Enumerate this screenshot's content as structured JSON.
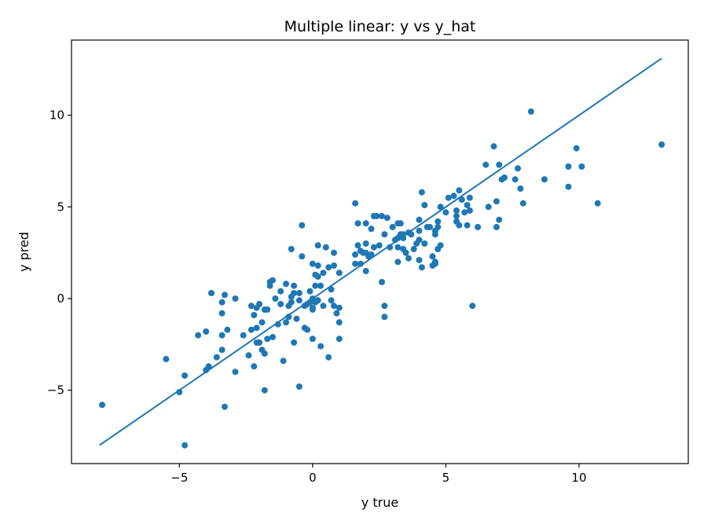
{
  "chart_data": {
    "type": "scatter",
    "title": "Multiple linear: y vs y_hat",
    "xlabel": "y true",
    "ylabel": "y pred",
    "xlim": [
      -9.05,
      14.1
    ],
    "ylim": [
      -9.0,
      14.1
    ],
    "xticks": [
      -5,
      0,
      5,
      10
    ],
    "yticks": [
      -5,
      0,
      5,
      10
    ],
    "xtick_labels": [
      "−5",
      "0",
      "5",
      "10"
    ],
    "ytick_labels": [
      "−5",
      "0",
      "5",
      "10"
    ],
    "grid": false,
    "legend": "none",
    "point_color": "#1f77b4",
    "line_color": "#1f77b4",
    "reference_line": {
      "x": [
        -8.0,
        13.1
      ],
      "y": [
        -8.0,
        13.1
      ]
    },
    "points": [
      [
        -7.9,
        -5.8
      ],
      [
        -5.5,
        -3.3
      ],
      [
        -5.0,
        -5.1
      ],
      [
        -4.8,
        -4.2
      ],
      [
        -4.8,
        -8.0
      ],
      [
        -4.3,
        -2.0
      ],
      [
        -4.0,
        -1.8
      ],
      [
        -4.0,
        -3.9
      ],
      [
        -3.9,
        -3.7
      ],
      [
        -3.8,
        0.3
      ],
      [
        -3.6,
        -3.2
      ],
      [
        -3.4,
        -2.8
      ],
      [
        -3.4,
        -0.2
      ],
      [
        -3.4,
        -0.8
      ],
      [
        -3.4,
        -2.0
      ],
      [
        -3.3,
        0.2
      ],
      [
        -3.3,
        -5.9
      ],
      [
        -3.2,
        -1.7
      ],
      [
        -2.9,
        0.0
      ],
      [
        -2.9,
        -4.0
      ],
      [
        -2.6,
        -2.0
      ],
      [
        -2.4,
        -3.1
      ],
      [
        -2.3,
        -0.4
      ],
      [
        -2.3,
        -1.7
      ],
      [
        -2.2,
        -3.7
      ],
      [
        -2.2,
        -0.9
      ],
      [
        -2.1,
        -2.4
      ],
      [
        -2.1,
        -0.5
      ],
      [
        -2.1,
        -1.6
      ],
      [
        -2.0,
        -2.4
      ],
      [
        -2.0,
        -0.3
      ],
      [
        -1.9,
        -2.8
      ],
      [
        -1.9,
        -1.3
      ],
      [
        -1.8,
        -0.6
      ],
      [
        -1.8,
        -3.0
      ],
      [
        -1.8,
        -5.0
      ],
      [
        -1.7,
        -0.6
      ],
      [
        -1.7,
        -2.2
      ],
      [
        -1.6,
        0.9
      ],
      [
        -1.6,
        0.7
      ],
      [
        -1.5,
        1.0
      ],
      [
        -1.5,
        -2.1
      ],
      [
        -1.4,
        0.0
      ],
      [
        -1.3,
        -1.4
      ],
      [
        -1.2,
        -0.3
      ],
      [
        -1.2,
        0.4
      ],
      [
        -1.1,
        -3.4
      ],
      [
        -1.0,
        -1.3
      ],
      [
        -1.0,
        0.8
      ],
      [
        -0.9,
        -1.0
      ],
      [
        -0.9,
        -0.4
      ],
      [
        -0.8,
        2.7
      ],
      [
        -0.8,
        0.1
      ],
      [
        -0.8,
        -0.2
      ],
      [
        -0.7,
        0.3
      ],
      [
        -0.7,
        -2.4
      ],
      [
        -0.7,
        0.7
      ],
      [
        -0.6,
        -1.1
      ],
      [
        -0.5,
        -0.1
      ],
      [
        -0.5,
        -4.8
      ],
      [
        -0.5,
        0.3
      ],
      [
        -0.4,
        4.0
      ],
      [
        -0.4,
        2.3
      ],
      [
        -0.3,
        -0.4
      ],
      [
        -0.3,
        -1.6
      ],
      [
        -0.2,
        -0.3
      ],
      [
        -0.2,
        -1.7
      ],
      [
        -0.1,
        0.4
      ],
      [
        -0.1,
        -0.2
      ],
      [
        0.0,
        -2.2
      ],
      [
        0.0,
        -0.5
      ],
      [
        0.0,
        0.0
      ],
      [
        0.0,
        1.9
      ],
      [
        0.0,
        -0.6
      ],
      [
        0.1,
        0.7
      ],
      [
        0.1,
        -0.2
      ],
      [
        0.1,
        1.3
      ],
      [
        0.2,
        2.9
      ],
      [
        0.2,
        1.8
      ],
      [
        0.2,
        -0.1
      ],
      [
        0.2,
        1.2
      ],
      [
        0.3,
        -2.6
      ],
      [
        0.3,
        0.7
      ],
      [
        0.4,
        1.4
      ],
      [
        0.4,
        -0.4
      ],
      [
        0.5,
        2.8
      ],
      [
        0.6,
        1.7
      ],
      [
        0.6,
        -3.2
      ],
      [
        0.7,
        -0.1
      ],
      [
        0.7,
        0.5
      ],
      [
        0.8,
        1.8
      ],
      [
        0.8,
        -0.4
      ],
      [
        0.8,
        2.5
      ],
      [
        0.9,
        -0.8
      ],
      [
        1.0,
        -2.2
      ],
      [
        1.0,
        1.4
      ],
      [
        1.0,
        -1.3
      ],
      [
        1.0,
        -0.5
      ],
      [
        1.6,
        1.9
      ],
      [
        1.6,
        5.2
      ],
      [
        1.6,
        2.4
      ],
      [
        1.7,
        2.9
      ],
      [
        1.7,
        4.1
      ],
      [
        1.8,
        1.9
      ],
      [
        1.8,
        2.6
      ],
      [
        1.9,
        2.5
      ],
      [
        2.0,
        2.5
      ],
      [
        2.0,
        1.5
      ],
      [
        2.0,
        3.0
      ],
      [
        2.0,
        4.1
      ],
      [
        2.1,
        2.3
      ],
      [
        2.2,
        3.8
      ],
      [
        2.2,
        2.4
      ],
      [
        2.3,
        2.8
      ],
      [
        2.3,
        4.5
      ],
      [
        2.4,
        4.5
      ],
      [
        2.5,
        2.9
      ],
      [
        2.6,
        0.9
      ],
      [
        2.6,
        4.5
      ],
      [
        2.7,
        -1.0
      ],
      [
        2.7,
        3.5
      ],
      [
        2.7,
        -0.4
      ],
      [
        2.8,
        4.4
      ],
      [
        2.9,
        2.8
      ],
      [
        3.0,
        3.9
      ],
      [
        3.1,
        3.2
      ],
      [
        3.2,
        4.1
      ],
      [
        3.2,
        2.8
      ],
      [
        3.2,
        3.3
      ],
      [
        3.2,
        2.0
      ],
      [
        3.3,
        3.5
      ],
      [
        3.3,
        4.1
      ],
      [
        3.4,
        3.3
      ],
      [
        3.4,
        3.5
      ],
      [
        3.4,
        2.7
      ],
      [
        3.5,
        2.5
      ],
      [
        3.6,
        2.2
      ],
      [
        3.6,
        3.6
      ],
      [
        3.7,
        3.5
      ],
      [
        3.8,
        2.7
      ],
      [
        3.9,
        3.0
      ],
      [
        4.0,
        4.3
      ],
      [
        4.0,
        2.1
      ],
      [
        4.0,
        3.2
      ],
      [
        4.0,
        3.7
      ],
      [
        4.1,
        1.7
      ],
      [
        4.1,
        5.8
      ],
      [
        4.2,
        5.1
      ],
      [
        4.2,
        3.0
      ],
      [
        4.3,
        3.9
      ],
      [
        4.4,
        3.9
      ],
      [
        4.5,
        1.8
      ],
      [
        4.5,
        2.3
      ],
      [
        4.6,
        3.7
      ],
      [
        4.6,
        2.0
      ],
      [
        4.6,
        1.9
      ],
      [
        4.6,
        3.5
      ],
      [
        4.7,
        3.9
      ],
      [
        4.7,
        4.2
      ],
      [
        4.7,
        2.7
      ],
      [
        4.8,
        2.9
      ],
      [
        4.8,
        5.0
      ],
      [
        5.0,
        4.7
      ],
      [
        5.1,
        5.5
      ],
      [
        5.3,
        5.6
      ],
      [
        5.4,
        4.2
      ],
      [
        5.4,
        4.8
      ],
      [
        5.4,
        4.5
      ],
      [
        5.5,
        5.9
      ],
      [
        5.5,
        4.0
      ],
      [
        5.6,
        5.4
      ],
      [
        5.7,
        4.7
      ],
      [
        5.8,
        4.0
      ],
      [
        5.8,
        5.1
      ],
      [
        5.9,
        4.8
      ],
      [
        5.9,
        5.5
      ],
      [
        6.0,
        -0.4
      ],
      [
        6.2,
        3.9
      ],
      [
        6.5,
        7.3
      ],
      [
        6.6,
        5.0
      ],
      [
        6.8,
        8.3
      ],
      [
        6.9,
        3.9
      ],
      [
        6.9,
        5.3
      ],
      [
        7.0,
        7.3
      ],
      [
        7.0,
        4.3
      ],
      [
        7.1,
        6.5
      ],
      [
        7.2,
        6.6
      ],
      [
        7.6,
        6.5
      ],
      [
        7.7,
        7.1
      ],
      [
        7.8,
        6.0
      ],
      [
        7.9,
        5.2
      ],
      [
        8.2,
        10.2
      ],
      [
        8.7,
        6.5
      ],
      [
        9.6,
        7.2
      ],
      [
        9.6,
        6.1
      ],
      [
        9.9,
        8.2
      ],
      [
        10.1,
        7.2
      ],
      [
        10.7,
        5.2
      ],
      [
        13.1,
        8.4
      ]
    ]
  }
}
